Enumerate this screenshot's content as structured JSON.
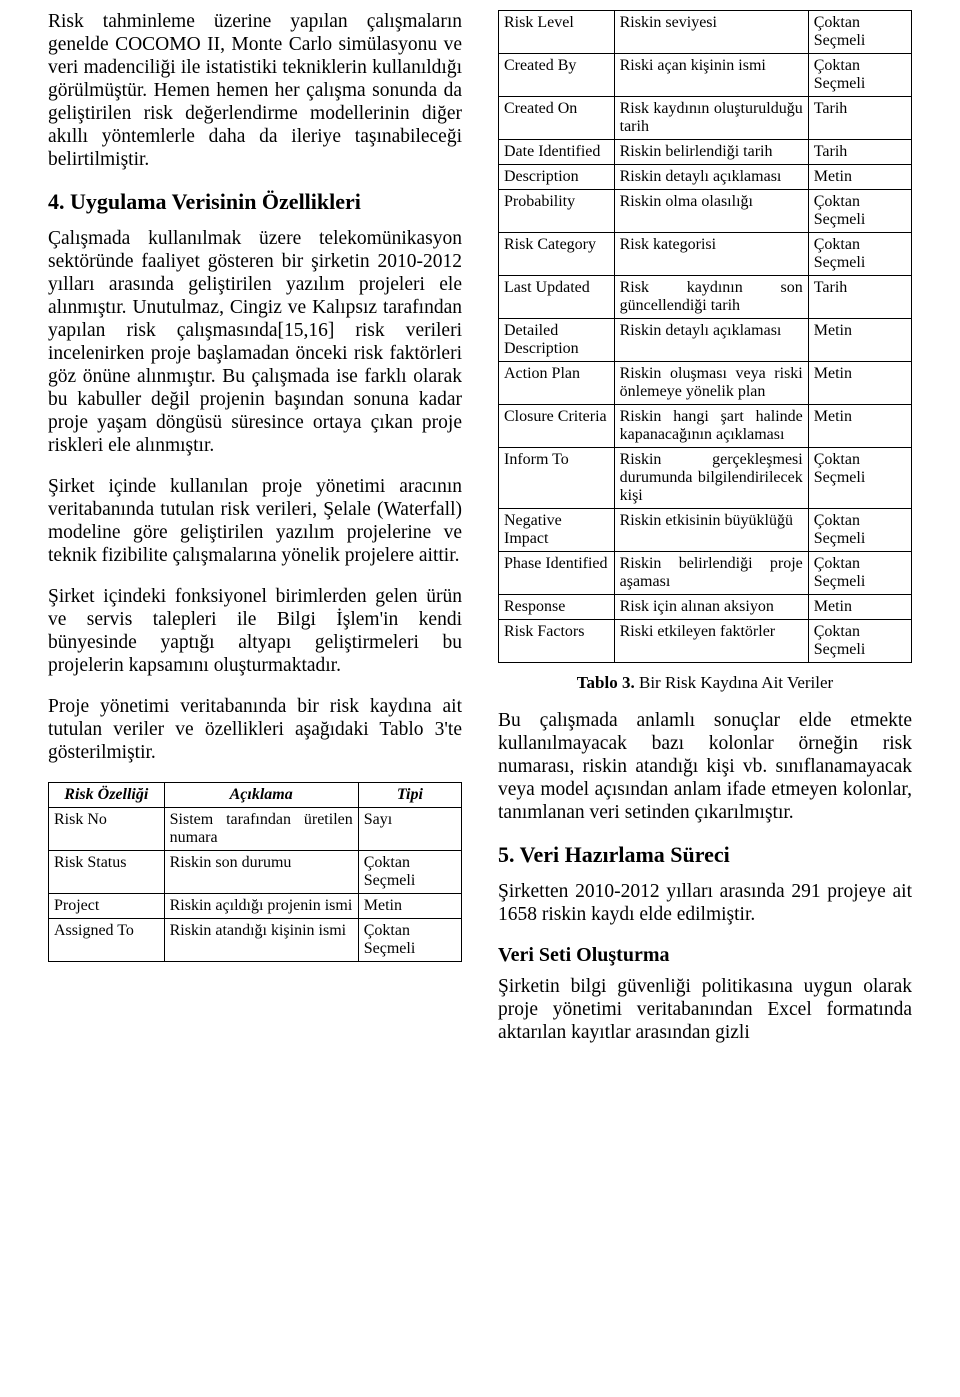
{
  "left": {
    "p1": "Risk tahminleme üzerine yapılan çalışmaların genelde COCOMO II, Monte Carlo simülasyonu ve veri madenciliği ile istatistiki tekniklerin kullanıldığı görülmüştür. Hemen hemen her çalışma sonunda da geliştirilen risk değerlendirme modellerinin diğer akıllı yöntemlerle daha da ileriye taşınabileceği belirtilmiştir.",
    "h4": "4. Uygulama Verisinin Özellikleri",
    "p2": "Çalışmada kullanılmak üzere telekomünikasyon sektöründe faaliyet gösteren bir şirketin 2010-2012 yılları arasında geliştirilen yazılım projeleri ele alınmıştır. Unutulmaz, Cingiz ve Kalıpsız tarafından yapılan risk çalışmasında[15,16] risk verileri incelenirken proje başlamadan önceki risk faktörleri göz önüne alınmıştır. Bu çalışmada ise farklı olarak bu kabuller değil projenin başından sonuna kadar proje yaşam döngüsü süresince ortaya çıkan proje riskleri ele alınmıştır.",
    "p3": "Şirket içinde kullanılan proje yönetimi aracının veritabanında tutulan risk verileri, Şelale (Waterfall) modeline göre geliştirilen yazılım projelerine ve teknik fizibilite çalışmalarına yönelik projelere aittir.",
    "p4": "Şirket içindeki fonksiyonel birimlerden gelen ürün ve servis talepleri ile Bilgi İşlem'in kendi bünyesinde yaptığı altyapı geliştirmeleri bu projelerin kapsamını oluşturmaktadır.",
    "p5": "Proje yönetimi veritabanında bir risk kaydına ait tutulan veriler ve özellikleri aşağıdaki Tablo 3'te gösterilmiştir.",
    "table_head": {
      "c1": "Risk Özelliği",
      "c2": "Açıklama",
      "c3": "Tipi"
    },
    "table_left": [
      {
        "a": "Risk No",
        "b": "Sistem tarafından üretilen numara",
        "c": "Sayı"
      },
      {
        "a": "Risk Status",
        "b": "Riskin son durumu",
        "c": "Çoktan Seçmeli"
      },
      {
        "a": "Project",
        "b": "Riskin açıldığı projenin ismi",
        "c": "Metin"
      },
      {
        "a": "Assigned To",
        "b": "Riskin atandığı kişinin ismi",
        "c": "Çoktan Seçmeli"
      }
    ]
  },
  "right": {
    "table_right": [
      {
        "a": "Risk Level",
        "b": "Riskin seviyesi",
        "c": "Çoktan Seçmeli"
      },
      {
        "a": "Created By",
        "b": "Riski açan kişinin ismi",
        "c": "Çoktan Seçmeli"
      },
      {
        "a": "Created On",
        "b": "Risk kaydının oluşturulduğu tarih",
        "c": "Tarih"
      },
      {
        "a": "Date Identified",
        "b": "Riskin belirlendiği tarih",
        "c": "Tarih"
      },
      {
        "a": "Description",
        "b": "Riskin detaylı açıklaması",
        "c": "Metin"
      },
      {
        "a": "Probability",
        "b": "Riskin olma olasılığı",
        "c": "Çoktan Seçmeli"
      },
      {
        "a": "Risk Category",
        "b": "Risk kategorisi",
        "c": "Çoktan Seçmeli"
      },
      {
        "a": "Last Updated",
        "b": "Risk kaydının son güncellendiği tarih",
        "c": "Tarih"
      },
      {
        "a": "Detailed Description",
        "b": "Riskin detaylı açıklaması",
        "c": "Metin"
      },
      {
        "a": "Action Plan",
        "b": "Riskin oluşması veya riski önlemeye yönelik plan",
        "c": "Metin"
      },
      {
        "a": "Closure Criteria",
        "b": "Riskin hangi şart halinde kapanacağının açıklaması",
        "c": "Metin"
      },
      {
        "a": "Inform To",
        "b": "Riskin gerçekleşmesi durumunda bilgilendirilecek kişi",
        "c": "Çoktan Seçmeli"
      },
      {
        "a": "Negative Impact",
        "b": "Riskin etkisinin büyüklüğü",
        "c": "Çoktan Seçmeli"
      },
      {
        "a": "Phase Identified",
        "b": "Riskin belirlendiği proje aşaması",
        "c": "Çoktan Seçmeli"
      },
      {
        "a": "Response",
        "b": "Risk için alınan aksiyon",
        "c": "Metin"
      },
      {
        "a": "Risk Factors",
        "b": "Riski etkileyen faktörler",
        "c": "Çoktan Seçmeli"
      }
    ],
    "caption_bold": "Tablo 3.",
    "caption_rest": " Bir Risk Kaydına Ait Veriler",
    "p6": "Bu çalışmada anlamlı sonuçlar elde etmekte kullanılmayacak bazı kolonlar örneğin risk numarası, riskin atandığı kişi vb. sınıflanamayacak veya model açısından anlam ifade etmeyen kolonlar, tanımlanan veri setinden çıkarılmıştır.",
    "h5": "5. Veri Hazırlama Süreci",
    "p7": "Şirketten 2010-2012 yılları arasında 291 projeye ait 1658 riskin kaydı elde edilmiştir.",
    "h5b": "Veri Seti Oluşturma",
    "p8": "Şirketin bilgi güvenliği politikasına uygun olarak proje yönetimi veritabanından Excel formatında aktarılan kayıtlar arasından gizli"
  },
  "style": {
    "body_fontsize": 19.5,
    "heading_fontsize": 22,
    "table_fontsize": 16,
    "text_color": "#000000",
    "bg_color": "#ffffff",
    "border_color": "#000000"
  }
}
